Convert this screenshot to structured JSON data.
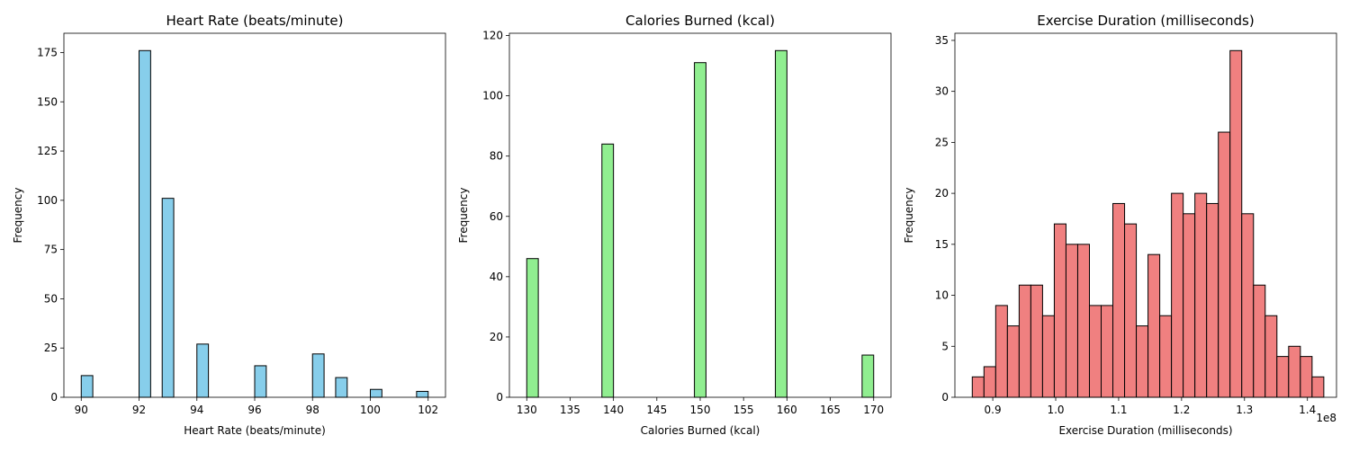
{
  "chart_data": [
    {
      "type": "bar",
      "title": "Heart Rate (beats/minute)",
      "xlabel": "Heart Rate (beats/minute)",
      "ylabel": "Frequency",
      "color": "#87CEEB",
      "xlim": [
        89.4,
        102.6
      ],
      "ylim": [
        0,
        184.8
      ],
      "xticks": [
        90,
        92,
        94,
        96,
        98,
        100,
        102
      ],
      "xtick_labels": [
        "90",
        "92",
        "94",
        "96",
        "98",
        "100",
        "102"
      ],
      "yticks": [
        0,
        25,
        50,
        75,
        100,
        125,
        150,
        175
      ],
      "bin_width": 0.4,
      "bins": [
        {
          "x": 90.0,
          "count": 11
        },
        {
          "x": 92.0,
          "count": 176
        },
        {
          "x": 92.8,
          "count": 101
        },
        {
          "x": 94.0,
          "count": 27
        },
        {
          "x": 96.0,
          "count": 16
        },
        {
          "x": 98.0,
          "count": 22
        },
        {
          "x": 98.8,
          "count": 10
        },
        {
          "x": 100.0,
          "count": 4
        },
        {
          "x": 101.6,
          "count": 3
        }
      ]
    },
    {
      "type": "bar",
      "title": "Calories Burned (kcal)",
      "xlabel": "Calories Burned (kcal)",
      "ylabel": "Frequency",
      "color": "#90EE90",
      "xlim": [
        128.0,
        172.0
      ],
      "ylim": [
        0,
        120.75
      ],
      "xticks": [
        130,
        135,
        140,
        145,
        150,
        155,
        160,
        165,
        170
      ],
      "xtick_labels": [
        "130",
        "135",
        "140",
        "145",
        "150",
        "155",
        "160",
        "165",
        "170"
      ],
      "yticks": [
        0,
        20,
        40,
        60,
        80,
        100,
        120
      ],
      "bin_width": 1.333,
      "bins": [
        {
          "x": 130.0,
          "count": 46
        },
        {
          "x": 138.667,
          "count": 84
        },
        {
          "x": 149.333,
          "count": 111
        },
        {
          "x": 158.667,
          "count": 115
        },
        {
          "x": 168.667,
          "count": 14
        }
      ]
    },
    {
      "type": "bar",
      "title": "Exercise Duration (milliseconds)",
      "xlabel": "Exercise Duration (milliseconds)",
      "ylabel": "Frequency",
      "color": "#F08080",
      "offset_label": "1e8",
      "xlim": [
        0.8398,
        1.4462
      ],
      "ylim": [
        0,
        35.7
      ],
      "xticks": [
        0.9,
        1.0,
        1.1,
        1.2,
        1.3,
        1.4
      ],
      "xtick_labels": [
        "0.9",
        "1.0",
        "1.1",
        "1.2",
        "1.3",
        "1.4"
      ],
      "yticks": [
        0,
        5,
        10,
        15,
        20,
        25,
        30,
        35
      ],
      "bin_start": 0.8674,
      "bin_width": 0.01862,
      "counts": [
        2,
        3,
        9,
        7,
        11,
        11,
        8,
        17,
        15,
        15,
        9,
        9,
        19,
        17,
        7,
        14,
        8,
        20,
        18,
        20,
        19,
        26,
        34,
        18,
        11,
        8,
        4,
        5,
        4,
        2
      ]
    }
  ]
}
